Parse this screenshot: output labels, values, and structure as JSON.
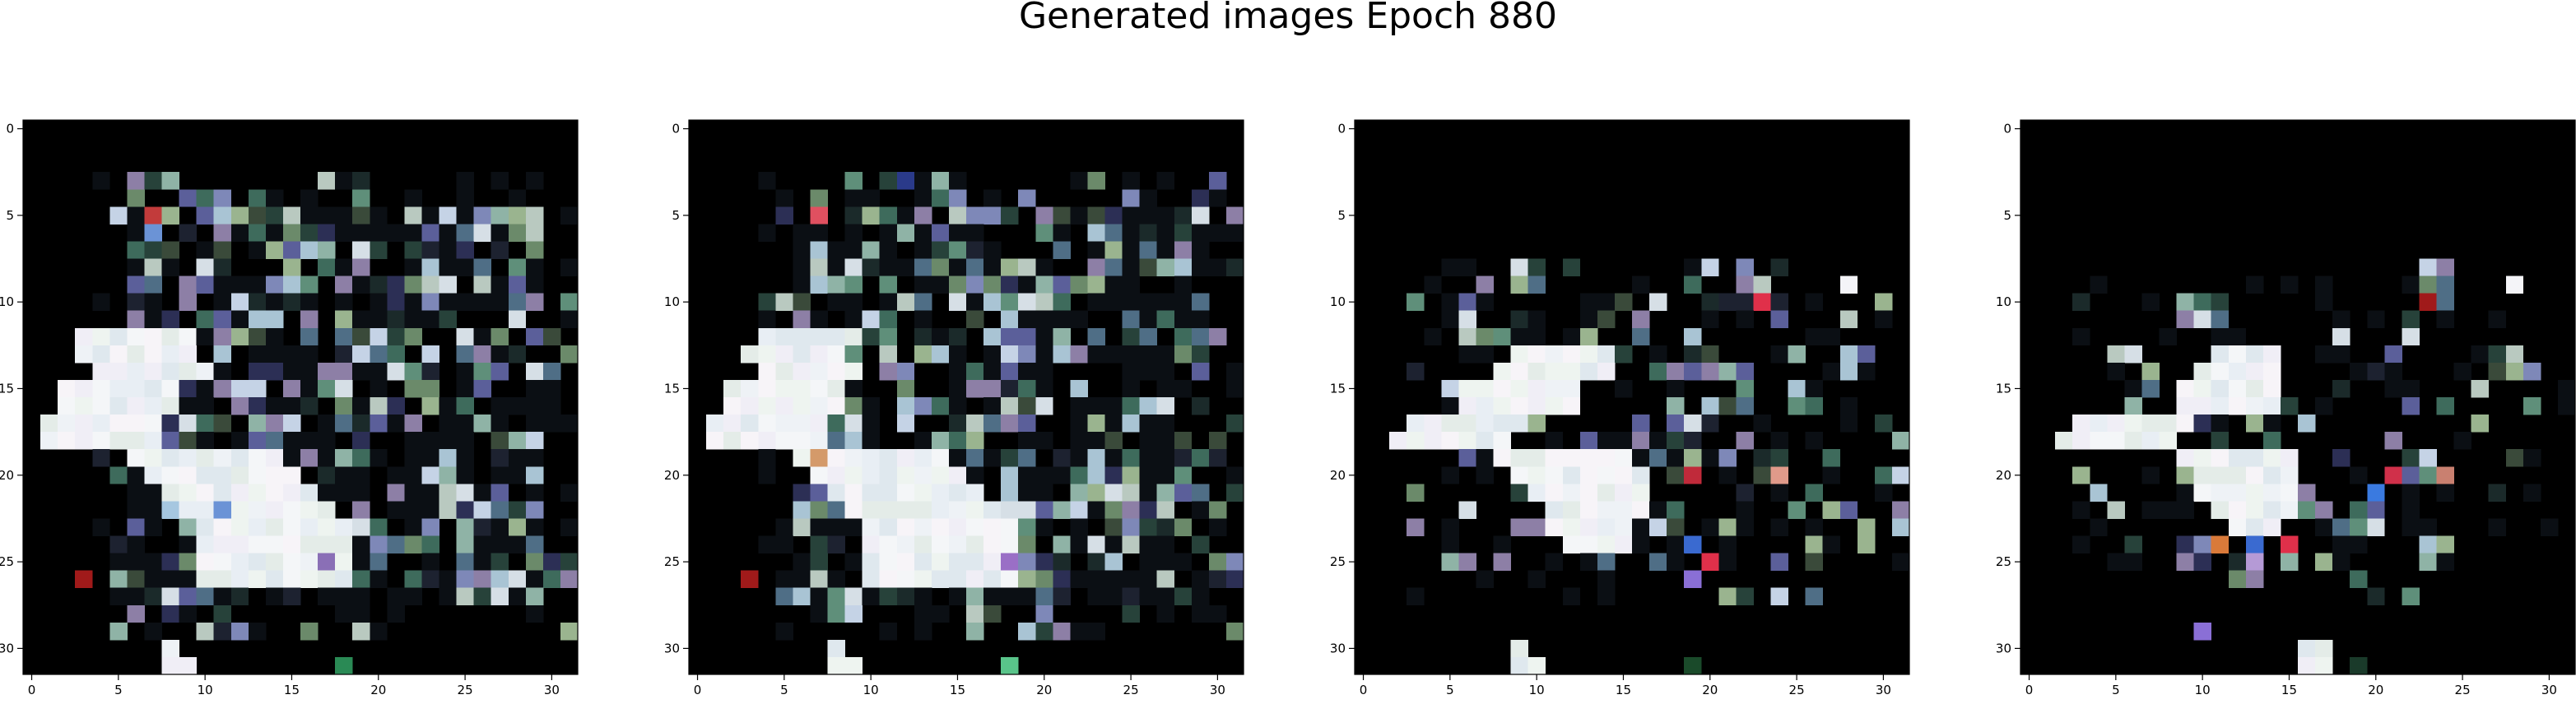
{
  "title": "Generated images Epoch 880",
  "chart_data": {
    "type": "heatmap",
    "title": "Generated images Epoch 880",
    "grid": false,
    "panels": [
      {
        "xticks": [
          0,
          5,
          10,
          15,
          20,
          25,
          30
        ],
        "yticks": [
          0,
          5,
          10,
          15,
          20,
          25,
          30
        ],
        "xlim": [
          -0.5,
          31.5
        ],
        "ylim": [
          31.5,
          -0.5
        ],
        "white_rows": [
          [
            12,
            3,
            7
          ],
          [
            13,
            3,
            7
          ],
          [
            14,
            4,
            7
          ],
          [
            15,
            2,
            7
          ],
          [
            16,
            2,
            7
          ],
          [
            17,
            1,
            7
          ],
          [
            18,
            1,
            7
          ],
          [
            19,
            6,
            9
          ],
          [
            20,
            7,
            9
          ],
          [
            21,
            8,
            9
          ],
          [
            22,
            9,
            9
          ],
          [
            23,
            10,
            9
          ],
          [
            24,
            10,
            9
          ],
          [
            25,
            10,
            9
          ],
          [
            26,
            10,
            9
          ],
          [
            30,
            8,
            1
          ],
          [
            31,
            8,
            2
          ]
        ],
        "blobs": [
          [
            12,
            18,
            11,
            14
          ],
          [
            17,
            8,
            12,
            13
          ],
          [
            21,
            24,
            10,
            11
          ],
          [
            22,
            25,
            10,
            12
          ],
          [
            25,
            30,
            7,
            11
          ]
        ],
        "accents": [
          [
            5,
            7,
            "#c23b3b"
          ],
          [
            6,
            7,
            "#6b93d6"
          ],
          [
            26,
            3,
            "#a01a1a"
          ],
          [
            22,
            11,
            "#6b93d6"
          ],
          [
            22,
            8,
            "#a6c7e0"
          ],
          [
            25,
            17,
            "#8a6fb6"
          ],
          [
            31,
            18,
            "#2a8a55"
          ]
        ],
        "cluster": [
          3,
          30,
          4,
          32
        ],
        "density": 0.78,
        "seed": 11
      },
      {
        "xticks": [
          0,
          5,
          10,
          15,
          20,
          25,
          30
        ],
        "yticks": [
          0,
          5,
          10,
          15,
          20,
          25,
          30
        ],
        "xlim": [
          -0.5,
          31.5
        ],
        "ylim": [
          31.5,
          -0.5
        ],
        "white_rows": [
          [
            12,
            4,
            6
          ],
          [
            13,
            3,
            6
          ],
          [
            14,
            4,
            6
          ],
          [
            15,
            2,
            7
          ],
          [
            16,
            2,
            7
          ],
          [
            17,
            1,
            7
          ],
          [
            18,
            1,
            7
          ],
          [
            19,
            6,
            9
          ],
          [
            20,
            7,
            9
          ],
          [
            21,
            8,
            9
          ],
          [
            22,
            9,
            9
          ],
          [
            23,
            10,
            9
          ],
          [
            24,
            10,
            9
          ],
          [
            25,
            10,
            9
          ],
          [
            26,
            10,
            9
          ],
          [
            30,
            8,
            1
          ],
          [
            31,
            8,
            2
          ]
        ],
        "blobs": [
          [
            12,
            18,
            11,
            14
          ],
          [
            17,
            8,
            12,
            13
          ],
          [
            21,
            24,
            10,
            11
          ],
          [
            22,
            25,
            10,
            12
          ],
          [
            25,
            30,
            7,
            11
          ]
        ],
        "accents": [
          [
            5,
            7,
            "#e05060"
          ],
          [
            3,
            12,
            "#2a3a8a"
          ],
          [
            26,
            3,
            "#a01a1a"
          ],
          [
            19,
            7,
            "#d49a6a"
          ],
          [
            25,
            18,
            "#9a6fc6"
          ],
          [
            31,
            18,
            "#59c48a"
          ]
        ],
        "cluster": [
          3,
          30,
          4,
          32
        ],
        "density": 0.8,
        "seed": 23
      },
      {
        "xticks": [
          0,
          5,
          10,
          15,
          20,
          25,
          30
        ],
        "yticks": [
          0,
          5,
          10,
          15,
          20,
          25,
          30
        ],
        "xlim": [
          -0.5,
          31.5
        ],
        "ylim": [
          31.5,
          -0.5
        ],
        "white_rows": [
          [
            13,
            9,
            6
          ],
          [
            14,
            8,
            7
          ],
          [
            15,
            6,
            7
          ],
          [
            16,
            6,
            7
          ],
          [
            17,
            3,
            7
          ],
          [
            18,
            2,
            7
          ],
          [
            19,
            8,
            8
          ],
          [
            20,
            9,
            8
          ],
          [
            21,
            10,
            7
          ],
          [
            22,
            11,
            6
          ],
          [
            23,
            11,
            5
          ],
          [
            24,
            12,
            4
          ],
          [
            30,
            9,
            1
          ],
          [
            31,
            9,
            2
          ]
        ],
        "blobs": [
          [
            8,
            9,
            10,
            11
          ],
          [
            9,
            22,
            10,
            12
          ],
          [
            13,
            19,
            10,
            11
          ],
          [
            17,
            18,
            12,
            13
          ],
          [
            19,
            23,
            9,
            10
          ]
        ],
        "accents": [
          [
            10,
            23,
            "#e0304a"
          ],
          [
            9,
            28,
            "#f4f4f8"
          ],
          [
            20,
            19,
            "#c02a3a"
          ],
          [
            20,
            24,
            "#e09a8a"
          ],
          [
            24,
            19,
            "#3a6ad0"
          ],
          [
            25,
            20,
            "#e0304a"
          ],
          [
            26,
            19,
            "#8a6fd6"
          ],
          [
            31,
            19,
            "#1a4a2a"
          ]
        ],
        "cluster": [
          8,
          28,
          3,
          32
        ],
        "density": 0.45,
        "seed": 37
      },
      {
        "xticks": [
          0,
          5,
          10,
          15,
          20,
          25,
          30
        ],
        "yticks": [
          0,
          5,
          10,
          15,
          20,
          25,
          30
        ],
        "xlim": [
          -0.5,
          31.5
        ],
        "ylim": [
          31.5,
          -0.5
        ],
        "white_rows": [
          [
            13,
            11,
            4
          ],
          [
            14,
            10,
            5
          ],
          [
            15,
            9,
            6
          ],
          [
            16,
            9,
            6
          ],
          [
            17,
            3,
            7
          ],
          [
            18,
            2,
            7
          ],
          [
            19,
            9,
            7
          ],
          [
            20,
            10,
            6
          ],
          [
            21,
            10,
            6
          ],
          [
            22,
            11,
            5
          ],
          [
            23,
            12,
            3
          ],
          [
            30,
            16,
            2
          ],
          [
            31,
            16,
            2
          ]
        ],
        "blobs": [
          [
            8,
            23,
            10,
            11
          ],
          [
            10,
            9,
            11,
            12
          ],
          [
            19,
            22,
            10,
            12
          ],
          [
            24,
            9,
            14,
            15
          ]
        ],
        "accents": [
          [
            10,
            23,
            "#a01a1a"
          ],
          [
            9,
            28,
            "#f4f4f8"
          ],
          [
            24,
            15,
            "#e0304a"
          ],
          [
            24,
            11,
            "#d97a3a"
          ],
          [
            24,
            13,
            "#3a6ad0"
          ],
          [
            25,
            13,
            "#b59ad6"
          ],
          [
            20,
            21,
            "#d0304a"
          ],
          [
            20,
            24,
            "#c98070"
          ],
          [
            21,
            20,
            "#3a7ae0"
          ],
          [
            29,
            10,
            "#8a6fd6"
          ],
          [
            31,
            19,
            "#1a3a2a"
          ]
        ],
        "cluster": [
          9,
          28,
          3,
          32
        ],
        "density": 0.32,
        "seed": 53
      }
    ]
  }
}
